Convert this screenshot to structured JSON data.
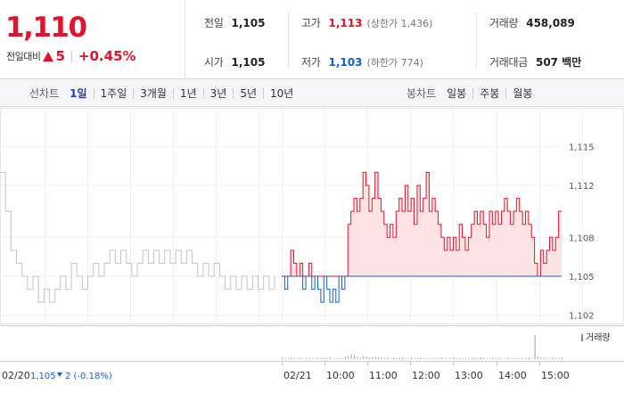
{
  "summary": {
    "current_price": "1,110",
    "change_label": "전일대비",
    "change_value": "5",
    "change_rate": "+0.45%",
    "prev_close_label": "전일",
    "prev_close": "1,105",
    "open_label": "시가",
    "open": "1,105",
    "high_label": "고가",
    "high": "1,113",
    "upper_limit": "(상한가 1,436)",
    "low_label": "저가",
    "low": "1,103",
    "lower_limit": "(하한가 774)",
    "volume_label": "거래량",
    "volume": "458,089",
    "amount_label": "거래대금",
    "amount": "507 백만"
  },
  "toolbar": {
    "line_label": "선차트",
    "line_periods": [
      "1일",
      "1주일",
      "3개월",
      "1년",
      "3년",
      "5년",
      "10년"
    ],
    "active_period": "1일",
    "candle_label": "봉차트",
    "candle_periods": [
      "일봉",
      "주봉",
      "월봉"
    ]
  },
  "colors": {
    "up": "#e8112d",
    "down": "#1261c4",
    "up_fill": "#fde3e3",
    "prev_day_line": "#c4c4c4",
    "volume_bar": "#9aa0b8"
  },
  "chart_data": {
    "type": "line",
    "ylim": [
      1101.5,
      1115.5
    ],
    "yticks": [
      1102,
      1105,
      1108,
      1112,
      1115
    ],
    "ytick_labels": [
      "1,102",
      "1,105",
      "1,108",
      "1,112",
      "1,115"
    ],
    "baseline": 1105,
    "xtick_labels": [
      "02/21",
      "10:00",
      "11:00",
      "12:00",
      "13:00",
      "14:00",
      "15:00"
    ],
    "prev_day": {
      "label": "02/20",
      "close_text": "1,105",
      "change_text": "2 (-0.18%)",
      "values": [
        1113,
        1110,
        1107,
        1106,
        1105,
        1104,
        1105,
        1103,
        1104,
        1103,
        1104,
        1105,
        1104,
        1106,
        1105,
        1104,
        1105,
        1106,
        1105,
        1106,
        1107,
        1106,
        1107,
        1106,
        1105,
        1106,
        1107,
        1106,
        1107,
        1106,
        1107,
        1106,
        1107,
        1106,
        1107,
        1106,
        1105,
        1106,
        1105,
        1106,
        1105,
        1104,
        1105,
        1104,
        1105,
        1104,
        1105,
        1104,
        1105,
        1104,
        1105
      ]
    },
    "today": {
      "values": [
        1105,
        1104,
        1105,
        1107,
        1106,
        1105,
        1106,
        1104,
        1105,
        1106,
        1104,
        1105,
        1104,
        1103,
        1105,
        1104,
        1103,
        1104,
        1103,
        1105,
        1104,
        1105,
        1109,
        1110,
        1111,
        1110,
        1111,
        1113,
        1112,
        1110,
        1111,
        1113,
        1111,
        1110,
        1109,
        1108,
        1109,
        1108,
        1110,
        1111,
        1110,
        1112,
        1110,
        1111,
        1109,
        1112,
        1110,
        1111,
        1113,
        1110,
        1111,
        1110,
        1109,
        1108,
        1107,
        1108,
        1107,
        1108,
        1107,
        1109,
        1108,
        1107,
        1108,
        1109,
        1110,
        1109,
        1110,
        1109,
        1108,
        1110,
        1109,
        1110,
        1109,
        1110,
        1111,
        1110,
        1109,
        1110,
        1111,
        1110,
        1109,
        1110,
        1109,
        1108,
        1106,
        1105,
        1107,
        1106,
        1107,
        1108,
        1107,
        1108,
        1110,
        1110
      ]
    },
    "volume_legend": "거래량",
    "volume": [
      2,
      1,
      1,
      2,
      1,
      1,
      2,
      1,
      1,
      1,
      1,
      1,
      2,
      1,
      1,
      1,
      2,
      1,
      1,
      1,
      1,
      3,
      4,
      6,
      5,
      3,
      2,
      4,
      3,
      2,
      2,
      3,
      2,
      2,
      1,
      2,
      1,
      2,
      1,
      2,
      2,
      1,
      1,
      2,
      1,
      1,
      2,
      1,
      1,
      1,
      1,
      1,
      1,
      2,
      1,
      1,
      1,
      2,
      1,
      1,
      1,
      1,
      1,
      2,
      1,
      1,
      2,
      1,
      1,
      1,
      2,
      1,
      1,
      1,
      1,
      2,
      1,
      1,
      1,
      1,
      1,
      2,
      2,
      1,
      30,
      3,
      2,
      2,
      1,
      1,
      2,
      1,
      1,
      2
    ]
  }
}
